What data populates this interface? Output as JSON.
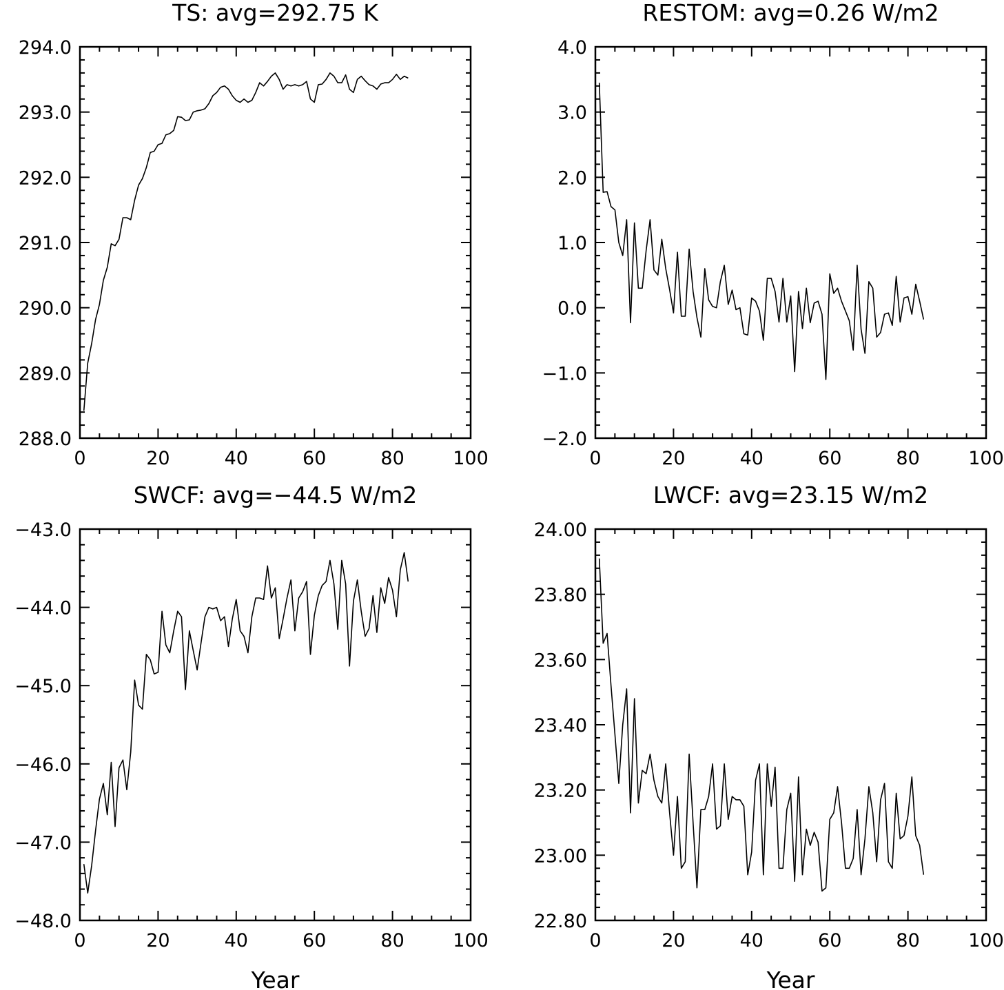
{
  "chart_data": [
    {
      "type": "line",
      "title": "TS: avg=292.75 K",
      "xlabel": "",
      "ylabel": "",
      "xlim": [
        0,
        100
      ],
      "ylim": [
        288.0,
        294.0
      ],
      "xticks": [
        "0",
        "20",
        "40",
        "60",
        "80",
        "100"
      ],
      "yticks": [
        "288.0",
        "289.0",
        "290.0",
        "291.0",
        "292.0",
        "293.0",
        "294.0"
      ],
      "grid": false,
      "x": [
        1,
        2,
        3,
        4,
        5,
        6,
        7,
        8,
        9,
        10,
        11,
        12,
        13,
        14,
        15,
        16,
        17,
        18,
        19,
        20,
        21,
        22,
        23,
        24,
        25,
        26,
        27,
        28,
        29,
        30,
        31,
        32,
        33,
        34,
        35,
        36,
        37,
        38,
        39,
        40,
        41,
        42,
        43,
        44,
        45,
        46,
        47,
        48,
        49,
        50,
        51,
        52,
        53,
        54,
        55,
        56,
        57,
        58,
        59,
        60,
        61,
        62,
        63,
        64,
        65,
        66,
        67,
        68,
        69,
        70,
        71,
        72,
        73,
        74,
        75,
        76,
        77,
        78,
        79,
        80,
        81,
        82,
        83,
        84
      ],
      "values": [
        288.42,
        289.15,
        289.45,
        289.82,
        290.05,
        290.42,
        290.62,
        290.98,
        290.95,
        291.05,
        291.38,
        291.38,
        291.35,
        291.65,
        291.88,
        291.98,
        292.15,
        292.38,
        292.4,
        292.5,
        292.52,
        292.65,
        292.67,
        292.72,
        292.93,
        292.92,
        292.87,
        292.88,
        293.0,
        293.02,
        293.03,
        293.05,
        293.13,
        293.25,
        293.3,
        293.38,
        293.4,
        293.35,
        293.25,
        293.18,
        293.15,
        293.2,
        293.15,
        293.18,
        293.3,
        293.45,
        293.4,
        293.47,
        293.55,
        293.6,
        293.5,
        293.35,
        293.42,
        293.4,
        293.42,
        293.4,
        293.42,
        293.47,
        293.2,
        293.15,
        293.42,
        293.43,
        293.5,
        293.6,
        293.55,
        293.45,
        293.45,
        293.57,
        293.35,
        293.3,
        293.5,
        293.55,
        293.48,
        293.42,
        293.4,
        293.35,
        293.43,
        293.45,
        293.45,
        293.5,
        293.58,
        293.5,
        293.55,
        293.52
      ]
    },
    {
      "type": "line",
      "title": "RESTOM: avg=0.26 W/m2",
      "xlabel": "",
      "ylabel": "",
      "xlim": [
        0,
        100
      ],
      "ylim": [
        -2.0,
        4.0
      ],
      "xticks": [
        "0",
        "20",
        "40",
        "60",
        "80",
        "100"
      ],
      "yticks": [
        "−2.0",
        "−1.0",
        "0.0",
        "1.0",
        "2.0",
        "3.0",
        "4.0"
      ],
      "grid": false,
      "x": [
        1,
        2,
        3,
        4,
        5,
        6,
        7,
        8,
        9,
        10,
        11,
        12,
        13,
        14,
        15,
        16,
        17,
        18,
        19,
        20,
        21,
        22,
        23,
        24,
        25,
        26,
        27,
        28,
        29,
        30,
        31,
        32,
        33,
        34,
        35,
        36,
        37,
        38,
        39,
        40,
        41,
        42,
        43,
        44,
        45,
        46,
        47,
        48,
        49,
        50,
        51,
        52,
        53,
        54,
        55,
        56,
        57,
        58,
        59,
        60,
        61,
        62,
        63,
        64,
        65,
        66,
        67,
        68,
        69,
        70,
        71,
        72,
        73,
        74,
        75,
        76,
        77,
        78,
        79,
        80,
        81,
        82,
        83,
        84
      ],
      "values": [
        3.45,
        1.77,
        1.78,
        1.55,
        1.5,
        1.0,
        0.8,
        1.35,
        -0.23,
        1.3,
        0.3,
        0.3,
        0.88,
        1.35,
        0.58,
        0.5,
        1.05,
        0.6,
        0.28,
        -0.08,
        0.85,
        -0.13,
        -0.13,
        0.9,
        0.25,
        -0.15,
        -0.45,
        0.6,
        0.12,
        0.02,
        0.0,
        0.4,
        0.65,
        0.05,
        0.27,
        -0.03,
        0.0,
        -0.4,
        -0.42,
        0.15,
        0.1,
        -0.05,
        -0.5,
        0.45,
        0.45,
        0.25,
        -0.22,
        0.45,
        -0.22,
        0.18,
        -0.98,
        0.25,
        -0.32,
        0.3,
        -0.23,
        0.07,
        0.1,
        -0.1,
        -1.1,
        0.52,
        0.22,
        0.3,
        0.1,
        -0.05,
        -0.2,
        -0.65,
        0.65,
        -0.33,
        -0.7,
        0.4,
        0.3,
        -0.45,
        -0.38,
        -0.1,
        -0.08,
        -0.27,
        0.48,
        -0.22,
        0.15,
        0.17,
        -0.1,
        0.36,
        0.1,
        -0.18
      ]
    },
    {
      "type": "line",
      "title": "SWCF: avg=−44.5 W/m2",
      "xlabel": "Year",
      "ylabel": "",
      "xlim": [
        0,
        100
      ],
      "ylim": [
        -48.0,
        -43.0
      ],
      "xticks": [
        "0",
        "20",
        "40",
        "60",
        "80",
        "100"
      ],
      "yticks": [
        "−48.0",
        "−47.0",
        "−46.0",
        "−45.0",
        "−44.0",
        "−43.0"
      ],
      "grid": false,
      "x": [
        1,
        2,
        3,
        4,
        5,
        6,
        7,
        8,
        9,
        10,
        11,
        12,
        13,
        14,
        15,
        16,
        17,
        18,
        19,
        20,
        21,
        22,
        23,
        24,
        25,
        26,
        27,
        28,
        29,
        30,
        31,
        32,
        33,
        34,
        35,
        36,
        37,
        38,
        39,
        40,
        41,
        42,
        43,
        44,
        45,
        46,
        47,
        48,
        49,
        50,
        51,
        52,
        53,
        54,
        55,
        56,
        57,
        58,
        59,
        60,
        61,
        62,
        63,
        64,
        65,
        66,
        67,
        68,
        69,
        70,
        71,
        72,
        73,
        74,
        75,
        76,
        77,
        78,
        79,
        80,
        81,
        82,
        83,
        84
      ],
      "values": [
        -47.28,
        -47.65,
        -47.3,
        -46.85,
        -46.45,
        -46.25,
        -46.65,
        -45.98,
        -46.8,
        -46.05,
        -45.95,
        -46.33,
        -45.85,
        -44.93,
        -45.25,
        -45.3,
        -44.6,
        -44.67,
        -44.85,
        -44.83,
        -44.05,
        -44.48,
        -44.58,
        -44.3,
        -44.05,
        -44.12,
        -45.05,
        -44.3,
        -44.55,
        -44.8,
        -44.45,
        -44.12,
        -44.0,
        -44.02,
        -44.0,
        -44.17,
        -44.12,
        -44.5,
        -44.15,
        -43.9,
        -44.3,
        -44.37,
        -44.58,
        -44.12,
        -43.88,
        -43.88,
        -43.9,
        -43.47,
        -43.88,
        -43.75,
        -44.4,
        -44.15,
        -43.88,
        -43.65,
        -44.3,
        -43.88,
        -43.8,
        -43.67,
        -44.6,
        -44.1,
        -43.85,
        -43.72,
        -43.67,
        -43.4,
        -43.7,
        -44.28,
        -43.4,
        -43.7,
        -44.75,
        -43.92,
        -43.65,
        -44.05,
        -44.37,
        -44.27,
        -43.85,
        -44.32,
        -43.75,
        -43.95,
        -43.62,
        -43.78,
        -44.12,
        -43.52,
        -43.3,
        -43.67
      ]
    },
    {
      "type": "line",
      "title": "LWCF: avg=23.15 W/m2",
      "xlabel": "Year",
      "ylabel": "",
      "xlim": [
        0,
        100
      ],
      "ylim": [
        22.8,
        24.0
      ],
      "xticks": [
        "0",
        "20",
        "40",
        "60",
        "80",
        "100"
      ],
      "yticks": [
        "22.80",
        "23.00",
        "23.20",
        "23.40",
        "23.60",
        "23.80",
        "24.00"
      ],
      "grid": false,
      "x": [
        1,
        2,
        3,
        4,
        5,
        6,
        7,
        8,
        9,
        10,
        11,
        12,
        13,
        14,
        15,
        16,
        17,
        18,
        19,
        20,
        21,
        22,
        23,
        24,
        25,
        26,
        27,
        28,
        29,
        30,
        31,
        32,
        33,
        34,
        35,
        36,
        37,
        38,
        39,
        40,
        41,
        42,
        43,
        44,
        45,
        46,
        47,
        48,
        49,
        50,
        51,
        52,
        53,
        54,
        55,
        56,
        57,
        58,
        59,
        60,
        61,
        62,
        63,
        64,
        65,
        66,
        67,
        68,
        69,
        70,
        71,
        72,
        73,
        74,
        75,
        76,
        77,
        78,
        79,
        80,
        81,
        82,
        83,
        84
      ],
      "values": [
        23.91,
        23.65,
        23.68,
        23.52,
        23.37,
        23.22,
        23.4,
        23.51,
        23.13,
        23.48,
        23.16,
        23.26,
        23.25,
        23.31,
        23.23,
        23.18,
        23.16,
        23.28,
        23.13,
        23.0,
        23.18,
        22.96,
        22.98,
        23.31,
        23.1,
        22.9,
        23.14,
        23.14,
        23.18,
        23.28,
        23.08,
        23.09,
        23.28,
        23.11,
        23.18,
        23.17,
        23.17,
        23.15,
        22.94,
        23.01,
        23.23,
        23.28,
        22.94,
        23.28,
        23.15,
        23.27,
        22.96,
        22.96,
        23.14,
        23.19,
        22.92,
        23.24,
        22.94,
        23.08,
        23.03,
        23.07,
        23.04,
        22.89,
        22.9,
        23.11,
        23.13,
        23.21,
        23.1,
        22.96,
        22.96,
        22.99,
        23.14,
        22.94,
        23.05,
        23.21,
        23.13,
        22.98,
        23.17,
        23.22,
        22.98,
        22.96,
        23.19,
        23.05,
        23.06,
        23.12,
        23.24,
        23.06,
        23.03,
        22.94
      ]
    }
  ]
}
